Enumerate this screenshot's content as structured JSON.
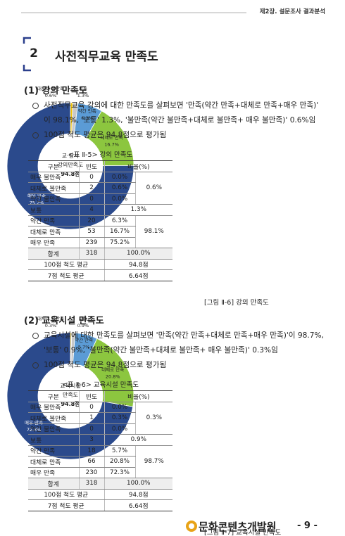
{
  "header": {
    "chapter": "제2장. 설문조사 결과분석"
  },
  "section": {
    "number": "2",
    "title": "사전직무교육 만족도"
  },
  "subsections": [
    {
      "title": "(1) 강의 만족도",
      "bullets": [
        "사전직무교육 강의에 대한 만족도를 살펴보면 '만족(약간 만족+대체로 만족+매우 만족)' 이 98.1%, '보통' 1.3%, '불만족(약간 불만족+대체로 불만족+ 매우 불만족)' 0.6%임",
        "100점 척도 평균은 94.8점으로 평가됨"
      ],
      "table": {
        "caption": "<표 Ⅱ-5> 강의 만족도",
        "header": [
          "구분",
          "빈도",
          "비율(%)"
        ],
        "rows": [
          [
            "매우 불만족",
            "0",
            "0.0%",
            "0.6%"
          ],
          [
            "대체로 불만족",
            "2",
            "0.6%"
          ],
          [
            "약간 불만족",
            "0",
            "0.0%"
          ],
          [
            "보통",
            "4",
            "1.3%"
          ],
          [
            "약간 만족",
            "20",
            "6.3%",
            "98.1%"
          ],
          [
            "대체로 만족",
            "53",
            "16.7%"
          ],
          [
            "매우 만족",
            "239",
            "75.2%"
          ],
          [
            "합계",
            "318",
            "100.0%"
          ],
          [
            "100점 척도 평균",
            "94.8점"
          ],
          [
            "7점 척도 평균",
            "6.64점"
          ]
        ]
      },
      "chart": {
        "type": "pie",
        "categories": [
          "대체로 불만족",
          "보통",
          "약간 만족",
          "대체로 만족",
          "매우 만족"
        ],
        "values": [
          0.6,
          1.3,
          6.3,
          16.7,
          75.2
        ],
        "value_labels": [
          "0.6%",
          "1.3%",
          "6.3%",
          "16.7%",
          "75.2%"
        ],
        "colors": [
          "#f2c200",
          "#c8c8c8",
          "#5b9bd5",
          "#8cc63f",
          "#2b4a8c"
        ],
        "center_label": [
          "교·강사",
          "강의만족도",
          "94.8점"
        ]
      },
      "figure_caption": "[그림 Ⅱ-6] 강의 만족도"
    },
    {
      "title": "(2) 교육시설 만족도",
      "bullets": [
        "교육시설에 대한 만족도를 살펴보면 '만족(약간 만족+대체로 만족+매우 만족)'이 98.7%, '보통' 0.9%, '불만족(약간 불만족+대체로 불만족+ 매우 불만족)' 0.3%임",
        "100점 척도 평균은 94.8점으로 평가됨"
      ],
      "table": {
        "caption": "<표 Ⅱ-6> 교육시설 만족도",
        "header": [
          "구분",
          "빈도",
          "비율(%)"
        ],
        "rows": [
          [
            "매우 불만족",
            "0",
            "0.0%",
            "0.3%"
          ],
          [
            "대체로 불만족",
            "1",
            "0.3%"
          ],
          [
            "약간 불만족",
            "0",
            "0.0%"
          ],
          [
            "보통",
            "3",
            "0.9%"
          ],
          [
            "약간 만족",
            "18",
            "5.7%",
            "98.7%"
          ],
          [
            "대체로 만족",
            "66",
            "20.8%"
          ],
          [
            "매우 만족",
            "230",
            "72.3%"
          ],
          [
            "합계",
            "318",
            "100.0%"
          ],
          [
            "100점 척도 평균",
            "94.8점"
          ],
          [
            "7점 척도 평균",
            "6.64점"
          ]
        ]
      },
      "chart": {
        "type": "pie",
        "categories": [
          "대체로 불만족",
          "보통",
          "약간 만족",
          "대체로 만족",
          "매우 만족"
        ],
        "values": [
          0.3,
          0.9,
          5.7,
          20.8,
          72.3
        ],
        "value_labels": [
          "0.3%",
          "0.9%",
          "5.7%",
          "20.8%",
          "72.3%"
        ],
        "colors": [
          "#f2c200",
          "#c8c8c8",
          "#5b9bd5",
          "#8cc63f",
          "#2b4a8c"
        ],
        "center_label": [
          "교육시설",
          "만족도",
          "94.8점"
        ]
      },
      "figure_caption": "[그림 Ⅱ-7] 교육시설 만족도"
    }
  ],
  "footer": {
    "logo": "문화콘텐츠개발원",
    "page": "- 9 -"
  }
}
